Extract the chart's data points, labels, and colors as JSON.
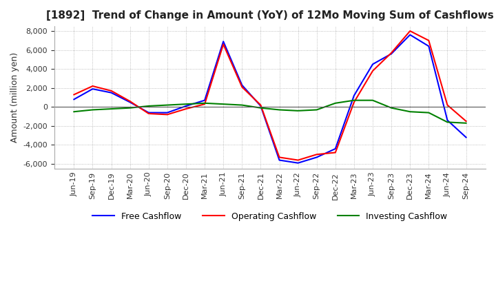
{
  "title": "[1892]  Trend of Change in Amount (YoY) of 12Mo Moving Sum of Cashflows",
  "ylabel": "Amount (million yen)",
  "ylim": [
    -6500,
    8500
  ],
  "yticks": [
    -6000,
    -4000,
    -2000,
    0,
    2000,
    4000,
    6000,
    8000
  ],
  "x_labels": [
    "Jun-19",
    "Sep-19",
    "Dec-19",
    "Mar-20",
    "Jun-20",
    "Sep-20",
    "Dec-20",
    "Mar-21",
    "Jun-21",
    "Sep-21",
    "Dec-21",
    "Mar-22",
    "Jun-22",
    "Sep-22",
    "Dec-22",
    "Mar-23",
    "Jun-23",
    "Sep-23",
    "Dec-23",
    "Mar-24",
    "Jun-24",
    "Sep-24"
  ],
  "operating": [
    1300,
    2200,
    1700,
    600,
    -700,
    -800,
    -200,
    300,
    6600,
    2100,
    200,
    -5300,
    -5600,
    -5000,
    -4800,
    500,
    3800,
    5700,
    8000,
    7000,
    200,
    -1500
  ],
  "investing": [
    -500,
    -300,
    -200,
    -100,
    100,
    200,
    300,
    400,
    300,
    200,
    -100,
    -300,
    -400,
    -300,
    400,
    700,
    700,
    -100,
    -500,
    -600,
    -1600,
    -1700
  ],
  "free": [
    800,
    1900,
    1500,
    500,
    -600,
    -600,
    100,
    700,
    6900,
    2300,
    100,
    -5600,
    -5900,
    -5300,
    -4400,
    1200,
    4500,
    5600,
    7600,
    6400,
    -1400,
    -3200
  ],
  "operating_color": "#ff0000",
  "investing_color": "#008000",
  "free_color": "#0000ff",
  "background_color": "#ffffff",
  "grid_color": "#aaaaaa",
  "title_fontsize": 11,
  "label_fontsize": 9,
  "tick_fontsize": 8,
  "legend_fontsize": 9
}
